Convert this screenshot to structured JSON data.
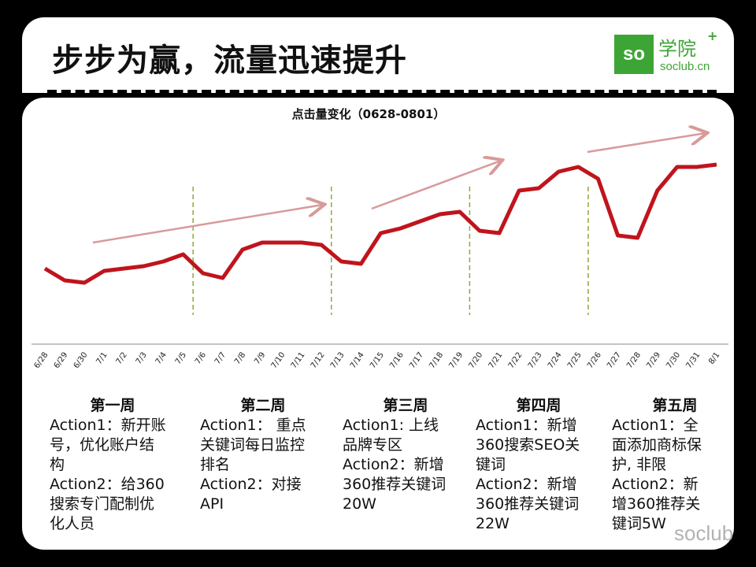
{
  "header": {
    "title": "步步为赢，流量迅速提升"
  },
  "logo": {
    "mark": "so",
    "name": "学院",
    "plus": "+",
    "url": "soclub.cn"
  },
  "chart_data": {
    "type": "line",
    "title": "点击量变化（0628-0801）",
    "categories": [
      "6/28",
      "6/29",
      "6/30",
      "7/1",
      "7/2",
      "7/3",
      "7/4",
      "7/5",
      "7/6",
      "7/7",
      "7/8",
      "7/9",
      "7/10",
      "7/11",
      "7/12",
      "7/13",
      "7/14",
      "7/15",
      "7/16",
      "7/17",
      "7/18",
      "7/19",
      "7/20",
      "7/21",
      "7/22",
      "7/23",
      "7/24",
      "7/25",
      "7/26",
      "7/27",
      "7/28",
      "7/29",
      "7/30",
      "7/31",
      "8/1"
    ],
    "values": [
      32,
      27,
      26,
      31,
      32,
      33,
      35,
      38,
      30,
      28,
      40,
      43,
      43,
      43,
      42,
      35,
      34,
      47,
      49,
      52,
      55,
      56,
      48,
      47,
      65,
      66,
      73,
      75,
      70,
      46,
      45,
      65,
      75,
      75,
      76
    ],
    "y_axis_shown": false,
    "ylim": [
      0,
      100
    ],
    "line_color": "#c0141c",
    "week_dividers_between": [
      [
        "7/5",
        "7/6"
      ],
      [
        "7/12",
        "7/13"
      ],
      [
        "7/19",
        "7/20"
      ],
      [
        "7/25",
        "7/26"
      ]
    ],
    "divider_color": "#8fa83a",
    "trend_arrow_color": "#d89a9a",
    "grid": false
  },
  "weeks": [
    {
      "title": "第一周",
      "lines": [
        "Action1：新开账",
        "号，优化账户结",
        "构",
        "Action2：给360",
        "搜索专门配制优",
        "化人员"
      ]
    },
    {
      "title": "第二周",
      "lines": [
        "Action1： 重点",
        "关键词每日监控",
        "排名",
        "Action2：对接",
        "API"
      ]
    },
    {
      "title": "第三周",
      "lines": [
        "Action1: 上线",
        "品牌专区",
        "Action2：新增",
        "360推荐关键词",
        "20W"
      ]
    },
    {
      "title": "第四周",
      "lines": [
        "Action1：新增",
        "360搜索SEO关",
        "键词",
        "Action2：新增",
        "360推荐关键词",
        "22W"
      ]
    },
    {
      "title": "第五周",
      "lines": [
        "Action1：全",
        "面添加商标保",
        "护, 非限",
        "Action2：新",
        "增360推荐关",
        "键词5W"
      ]
    }
  ],
  "watermark": "soclub"
}
